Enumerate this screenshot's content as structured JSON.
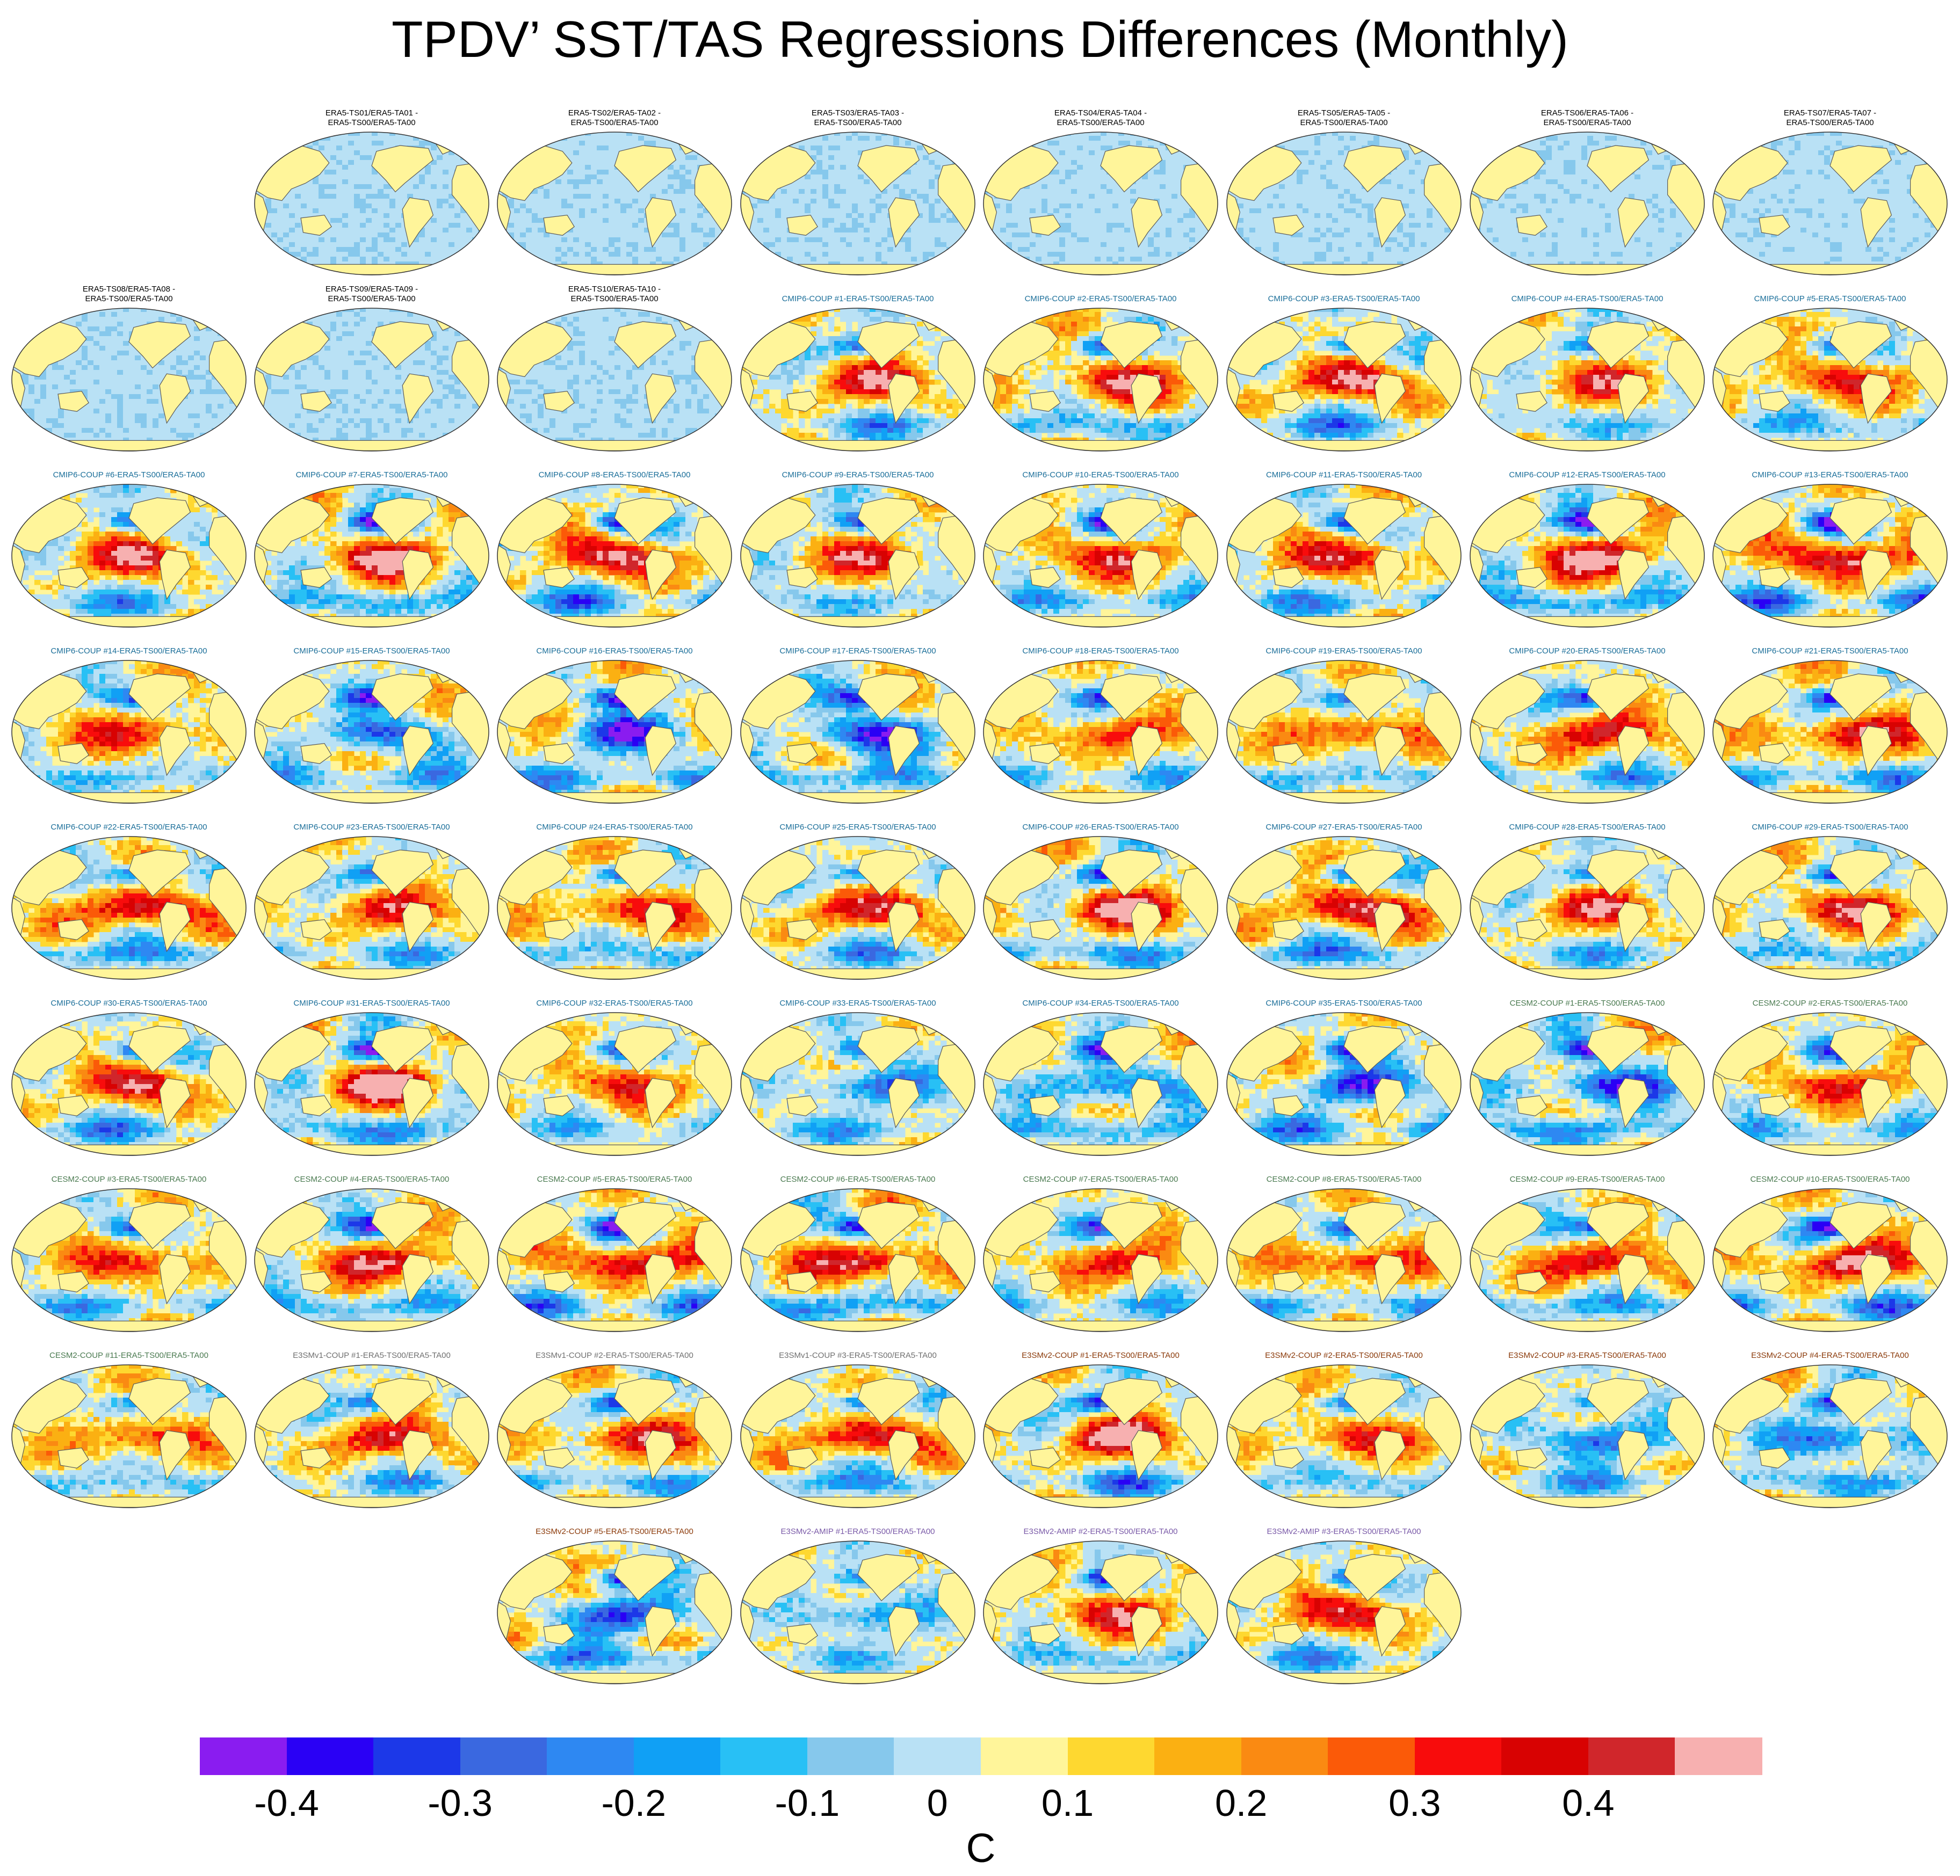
{
  "title": "TPDV’ SST/TAS Regressions Differences (Monthly)",
  "chart_data": {
    "type": "heatmap",
    "title": "TPDV’ SST/TAS Regressions Differences (Monthly)",
    "description_of_fields": "Global maps (ellipse projection) of regression differences; field values read qualitatively",
    "colorbar": {
      "units": "C",
      "ticks": [
        "-0.4",
        "-0.3",
        "-0.2",
        "-0.1",
        "0",
        "0.1",
        "0.2",
        "0.3",
        "0.4"
      ],
      "levels": [
        -0.45,
        -0.4,
        -0.35,
        -0.3,
        -0.25,
        -0.2,
        -0.15,
        -0.1,
        -0.05,
        0.05,
        0.1,
        0.15,
        0.2,
        0.25,
        0.3,
        0.35,
        0.4,
        0.45
      ],
      "colors": [
        "#8a1cf0",
        "#2a00f5",
        "#1c38e8",
        "#3a68e0",
        "#2e88f2",
        "#10a0f5",
        "#28c0f5",
        "#86c8ec",
        "#b9e1f5",
        "#fff59a",
        "#fed830",
        "#fbb012",
        "#fa8a12",
        "#fb5a08",
        "#f80c0c",
        "#d80202",
        "#d0262b",
        "#f7b0b0"
      ]
    },
    "color_group_colors": {
      "ERA5": "#000000",
      "CMIP6": "#1a6e99",
      "CESM2": "#4a7a50",
      "E3SMv1": "#707070",
      "E3SMv2-COUP": "#8b3a0a",
      "E3SMv2-AMIP": "#7a5aa8"
    },
    "panels": [
      {
        "label": "ERA5-TS01/ERA5-TA01 -\nERA5-TS00/ERA5-TA00",
        "group": "ERA5"
      },
      {
        "label": "ERA5-TS02/ERA5-TA02 -\nERA5-TS00/ERA5-TA00",
        "group": "ERA5"
      },
      {
        "label": "ERA5-TS03/ERA5-TA03 -\nERA5-TS00/ERA5-TA00",
        "group": "ERA5"
      },
      {
        "label": "ERA5-TS04/ERA5-TA04 -\nERA5-TS00/ERA5-TA00",
        "group": "ERA5"
      },
      {
        "label": "ERA5-TS05/ERA5-TA05 -\nERA5-TS00/ERA5-TA00",
        "group": "ERA5"
      },
      {
        "label": "ERA5-TS06/ERA5-TA06 -\nERA5-TS00/ERA5-TA00",
        "group": "ERA5"
      },
      {
        "label": "ERA5-TS07/ERA5-TA07 -\nERA5-TS00/ERA5-TA00",
        "group": "ERA5"
      },
      {
        "label": "ERA5-TS08/ERA5-TA08 -\nERA5-TS00/ERA5-TA00",
        "group": "ERA5"
      },
      {
        "label": "ERA5-TS09/ERA5-TA09 -\nERA5-TS00/ERA5-TA00",
        "group": "ERA5"
      },
      {
        "label": "ERA5-TS10/ERA5-TA10 -\nERA5-TS00/ERA5-TA00",
        "group": "ERA5"
      },
      {
        "label": "CMIP6-COUP  #1-ERA5-TS00/ERA5-TA00",
        "group": "CMIP6"
      },
      {
        "label": "CMIP6-COUP  #2-ERA5-TS00/ERA5-TA00",
        "group": "CMIP6"
      },
      {
        "label": "CMIP6-COUP  #3-ERA5-TS00/ERA5-TA00",
        "group": "CMIP6"
      },
      {
        "label": "CMIP6-COUP  #4-ERA5-TS00/ERA5-TA00",
        "group": "CMIP6"
      },
      {
        "label": "CMIP6-COUP  #5-ERA5-TS00/ERA5-TA00",
        "group": "CMIP6"
      },
      {
        "label": "CMIP6-COUP  #6-ERA5-TS00/ERA5-TA00",
        "group": "CMIP6"
      },
      {
        "label": "CMIP6-COUP  #7-ERA5-TS00/ERA5-TA00",
        "group": "CMIP6"
      },
      {
        "label": "CMIP6-COUP  #8-ERA5-TS00/ERA5-TA00",
        "group": "CMIP6"
      },
      {
        "label": "CMIP6-COUP  #9-ERA5-TS00/ERA5-TA00",
        "group": "CMIP6"
      },
      {
        "label": "CMIP6-COUP  #10-ERA5-TS00/ERA5-TA00",
        "group": "CMIP6"
      },
      {
        "label": "CMIP6-COUP  #11-ERA5-TS00/ERA5-TA00",
        "group": "CMIP6"
      },
      {
        "label": "CMIP6-COUP  #12-ERA5-TS00/ERA5-TA00",
        "group": "CMIP6"
      },
      {
        "label": "CMIP6-COUP  #13-ERA5-TS00/ERA5-TA00",
        "group": "CMIP6"
      },
      {
        "label": "CMIP6-COUP  #14-ERA5-TS00/ERA5-TA00",
        "group": "CMIP6"
      },
      {
        "label": "CMIP6-COUP  #15-ERA5-TS00/ERA5-TA00",
        "group": "CMIP6"
      },
      {
        "label": "CMIP6-COUP  #16-ERA5-TS00/ERA5-TA00",
        "group": "CMIP6"
      },
      {
        "label": "CMIP6-COUP  #17-ERA5-TS00/ERA5-TA00",
        "group": "CMIP6"
      },
      {
        "label": "CMIP6-COUP  #18-ERA5-TS00/ERA5-TA00",
        "group": "CMIP6"
      },
      {
        "label": "CMIP6-COUP  #19-ERA5-TS00/ERA5-TA00",
        "group": "CMIP6"
      },
      {
        "label": "CMIP6-COUP  #20-ERA5-TS00/ERA5-TA00",
        "group": "CMIP6"
      },
      {
        "label": "CMIP6-COUP  #21-ERA5-TS00/ERA5-TA00",
        "group": "CMIP6"
      },
      {
        "label": "CMIP6-COUP  #22-ERA5-TS00/ERA5-TA00",
        "group": "CMIP6"
      },
      {
        "label": "CMIP6-COUP  #23-ERA5-TS00/ERA5-TA00",
        "group": "CMIP6"
      },
      {
        "label": "CMIP6-COUP  #24-ERA5-TS00/ERA5-TA00",
        "group": "CMIP6"
      },
      {
        "label": "CMIP6-COUP  #25-ERA5-TS00/ERA5-TA00",
        "group": "CMIP6"
      },
      {
        "label": "CMIP6-COUP  #26-ERA5-TS00/ERA5-TA00",
        "group": "CMIP6"
      },
      {
        "label": "CMIP6-COUP  #27-ERA5-TS00/ERA5-TA00",
        "group": "CMIP6"
      },
      {
        "label": "CMIP6-COUP  #28-ERA5-TS00/ERA5-TA00",
        "group": "CMIP6"
      },
      {
        "label": "CMIP6-COUP  #29-ERA5-TS00/ERA5-TA00",
        "group": "CMIP6"
      },
      {
        "label": "CMIP6-COUP  #30-ERA5-TS00/ERA5-TA00",
        "group": "CMIP6"
      },
      {
        "label": "CMIP6-COUP  #31-ERA5-TS00/ERA5-TA00",
        "group": "CMIP6"
      },
      {
        "label": "CMIP6-COUP  #32-ERA5-TS00/ERA5-TA00",
        "group": "CMIP6"
      },
      {
        "label": "CMIP6-COUP  #33-ERA5-TS00/ERA5-TA00",
        "group": "CMIP6"
      },
      {
        "label": "CMIP6-COUP  #34-ERA5-TS00/ERA5-TA00",
        "group": "CMIP6"
      },
      {
        "label": "CMIP6-COUP  #35-ERA5-TS00/ERA5-TA00",
        "group": "CMIP6"
      },
      {
        "label": "CESM2-COUP  #1-ERA5-TS00/ERA5-TA00",
        "group": "CESM2"
      },
      {
        "label": "CESM2-COUP  #2-ERA5-TS00/ERA5-TA00",
        "group": "CESM2"
      },
      {
        "label": "CESM2-COUP  #3-ERA5-TS00/ERA5-TA00",
        "group": "CESM2"
      },
      {
        "label": "CESM2-COUP  #4-ERA5-TS00/ERA5-TA00",
        "group": "CESM2"
      },
      {
        "label": "CESM2-COUP  #5-ERA5-TS00/ERA5-TA00",
        "group": "CESM2"
      },
      {
        "label": "CESM2-COUP  #6-ERA5-TS00/ERA5-TA00",
        "group": "CESM2"
      },
      {
        "label": "CESM2-COUP  #7-ERA5-TS00/ERA5-TA00",
        "group": "CESM2"
      },
      {
        "label": "CESM2-COUP  #8-ERA5-TS00/ERA5-TA00",
        "group": "CESM2"
      },
      {
        "label": "CESM2-COUP  #9-ERA5-TS00/ERA5-TA00",
        "group": "CESM2"
      },
      {
        "label": "CESM2-COUP  #10-ERA5-TS00/ERA5-TA00",
        "group": "CESM2"
      },
      {
        "label": "CESM2-COUP  #11-ERA5-TS00/ERA5-TA00",
        "group": "CESM2"
      },
      {
        "label": "E3SMv1-COUP  #1-ERA5-TS00/ERA5-TA00",
        "group": "E3SMv1"
      },
      {
        "label": "E3SMv1-COUP  #2-ERA5-TS00/ERA5-TA00",
        "group": "E3SMv1"
      },
      {
        "label": "E3SMv1-COUP  #3-ERA5-TS00/ERA5-TA00",
        "group": "E3SMv1"
      },
      {
        "label": "E3SMv2-COUP  #1-ERA5-TS00/ERA5-TA00",
        "group": "E3SMv2-COUP"
      },
      {
        "label": "E3SMv2-COUP  #2-ERA5-TS00/ERA5-TA00",
        "group": "E3SMv2-COUP"
      },
      {
        "label": "E3SMv2-COUP  #3-ERA5-TS00/ERA5-TA00",
        "group": "E3SMv2-COUP"
      },
      {
        "label": "E3SMv2-COUP  #4-ERA5-TS00/ERA5-TA00",
        "group": "E3SMv2-COUP"
      },
      {
        "label": "E3SMv2-COUP  #5-ERA5-TS00/ERA5-TA00",
        "group": "E3SMv2-COUP"
      },
      {
        "label": "E3SMv2-AMIP  #1-ERA5-TS00/ERA5-TA00",
        "group": "E3SMv2-AMIP"
      },
      {
        "label": "E3SMv2-AMIP  #2-ERA5-TS00/ERA5-TA00",
        "group": "E3SMv2-AMIP"
      },
      {
        "label": "E3SMv2-AMIP  #3-ERA5-TS00/ERA5-TA00",
        "group": "E3SMv2-AMIP"
      }
    ]
  }
}
